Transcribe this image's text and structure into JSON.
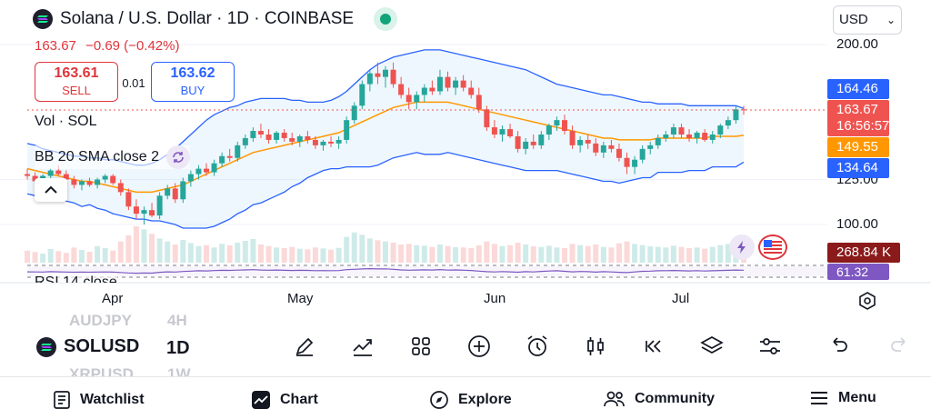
{
  "header": {
    "title": "Solana / U.S. Dollar · 1D · COINBASE",
    "price": "163.67",
    "change": "−0.69 (−0.42%)",
    "sell_price": "163.61",
    "sell_label": "SELL",
    "spread": "0.01",
    "buy_price": "163.62",
    "buy_label": "BUY",
    "currency": "USD"
  },
  "legend": {
    "volume": "Vol · SOL",
    "bb": "BB 20 SMA close 2",
    "rsi": "RSI 14 close"
  },
  "y_axis": {
    "labels": [
      "200.00",
      "125.00",
      "100.00"
    ]
  },
  "price_tags": {
    "upper_band": "164.46",
    "last_price": "163.67",
    "countdown": "16:56:57",
    "middle_band": "149.55",
    "lower_band": "134.64",
    "volume": "268.84 K",
    "rsi": "61.32"
  },
  "x_axis": {
    "labels": [
      "Apr",
      "May",
      "Jun",
      "Jul"
    ]
  },
  "bottom_toolbar": {
    "symbol": "SOLUSD",
    "interval": "1D",
    "ghost_symbol_above": "AUDJPY",
    "ghost_interval_above": "4H",
    "ghost_symbol_below": "XRPUSD",
    "ghost_interval_below": "1W"
  },
  "nav": {
    "watchlist": "Watchlist",
    "chart": "Chart",
    "explore": "Explore",
    "community": "Community",
    "menu": "Menu"
  },
  "colors": {
    "up": "#26a69a",
    "down": "#ef5350",
    "bb_basis": "#ff9800",
    "bb_band": "#2962ff",
    "rsi": "#7e57c2"
  },
  "chart_data": {
    "type": "candlestick",
    "title": "Solana / U.S. Dollar · 1D · COINBASE",
    "ylim": [
      90,
      210
    ],
    "x_ticks": [
      "Apr",
      "May",
      "Jun",
      "Jul"
    ],
    "ohlc": [
      [
        128,
        131,
        125,
        127
      ],
      [
        127,
        129,
        122,
        124
      ],
      [
        124,
        128,
        121,
        127
      ],
      [
        127,
        131,
        125,
        130
      ],
      [
        130,
        133,
        127,
        128
      ],
      [
        128,
        130,
        124,
        125
      ],
      [
        125,
        127,
        120,
        122
      ],
      [
        122,
        125,
        119,
        124
      ],
      [
        124,
        126,
        121,
        122
      ],
      [
        122,
        126,
        120,
        125
      ],
      [
        125,
        128,
        123,
        127
      ],
      [
        127,
        128,
        122,
        123
      ],
      [
        123,
        125,
        116,
        118
      ],
      [
        118,
        120,
        108,
        110
      ],
      [
        110,
        114,
        103,
        106
      ],
      [
        106,
        110,
        100,
        108
      ],
      [
        108,
        112,
        104,
        105
      ],
      [
        105,
        118,
        103,
        116
      ],
      [
        116,
        122,
        114,
        120
      ],
      [
        120,
        123,
        112,
        114
      ],
      [
        114,
        126,
        112,
        124
      ],
      [
        124,
        130,
        121,
        128
      ],
      [
        128,
        133,
        125,
        131
      ],
      [
        131,
        134,
        127,
        129
      ],
      [
        129,
        136,
        127,
        134
      ],
      [
        134,
        140,
        132,
        138
      ],
      [
        138,
        142,
        135,
        137
      ],
      [
        137,
        146,
        135,
        144
      ],
      [
        144,
        150,
        142,
        148
      ],
      [
        148,
        154,
        146,
        152
      ],
      [
        152,
        156,
        148,
        150
      ],
      [
        150,
        153,
        145,
        147
      ],
      [
        147,
        152,
        145,
        151
      ],
      [
        151,
        153,
        146,
        148
      ],
      [
        148,
        151,
        144,
        146
      ],
      [
        146,
        150,
        143,
        149
      ],
      [
        149,
        152,
        145,
        147
      ],
      [
        147,
        149,
        142,
        144
      ],
      [
        144,
        147,
        141,
        146
      ],
      [
        146,
        149,
        143,
        145
      ],
      [
        145,
        149,
        142,
        147
      ],
      [
        147,
        160,
        145,
        158
      ],
      [
        158,
        168,
        156,
        166
      ],
      [
        166,
        180,
        164,
        178
      ],
      [
        178,
        186,
        174,
        184
      ],
      [
        184,
        190,
        178,
        182
      ],
      [
        182,
        188,
        176,
        186
      ],
      [
        186,
        190,
        176,
        178
      ],
      [
        178,
        182,
        170,
        172
      ],
      [
        172,
        176,
        164,
        168
      ],
      [
        168,
        174,
        164,
        172
      ],
      [
        172,
        178,
        168,
        176
      ],
      [
        176,
        180,
        172,
        174
      ],
      [
        174,
        186,
        172,
        182
      ],
      [
        182,
        185,
        174,
        176
      ],
      [
        176,
        182,
        172,
        180
      ],
      [
        180,
        183,
        174,
        176
      ],
      [
        176,
        180,
        170,
        172
      ],
      [
        172,
        176,
        162,
        164
      ],
      [
        164,
        166,
        152,
        154
      ],
      [
        154,
        158,
        148,
        150
      ],
      [
        150,
        155,
        146,
        153
      ],
      [
        153,
        156,
        148,
        149
      ],
      [
        149,
        152,
        140,
        142
      ],
      [
        142,
        148,
        139,
        146
      ],
      [
        146,
        150,
        142,
        144
      ],
      [
        144,
        152,
        142,
        150
      ],
      [
        150,
        156,
        147,
        155
      ],
      [
        155,
        160,
        152,
        158
      ],
      [
        158,
        161,
        150,
        152
      ],
      [
        152,
        155,
        142,
        144
      ],
      [
        144,
        149,
        140,
        147
      ],
      [
        147,
        150,
        142,
        145
      ],
      [
        145,
        148,
        138,
        140
      ],
      [
        140,
        146,
        137,
        144
      ],
      [
        144,
        147,
        140,
        142
      ],
      [
        142,
        145,
        135,
        137
      ],
      [
        137,
        140,
        128,
        132
      ],
      [
        132,
        138,
        128,
        136
      ],
      [
        136,
        144,
        134,
        142
      ],
      [
        142,
        146,
        139,
        144
      ],
      [
        144,
        150,
        142,
        148
      ],
      [
        148,
        152,
        146,
        150
      ],
      [
        150,
        156,
        148,
        154
      ],
      [
        154,
        156,
        148,
        150
      ],
      [
        150,
        153,
        146,
        148
      ],
      [
        148,
        152,
        145,
        151
      ],
      [
        151,
        153,
        146,
        147
      ],
      [
        147,
        152,
        145,
        150
      ],
      [
        150,
        156,
        148,
        155
      ],
      [
        155,
        160,
        153,
        158
      ],
      [
        158,
        166,
        156,
        164
      ],
      [
        164,
        166,
        161,
        163.67
      ]
    ],
    "bb_upper": [
      145,
      144,
      142,
      141,
      140,
      139,
      138,
      138,
      137,
      137,
      136,
      136,
      135,
      134,
      133,
      133,
      134,
      136,
      139,
      142,
      146,
      150,
      154,
      158,
      161,
      163,
      165,
      166,
      168,
      169,
      170,
      170,
      170,
      170,
      169,
      169,
      168,
      168,
      168,
      169,
      171,
      174,
      178,
      182,
      186,
      189,
      191,
      193,
      194,
      195,
      196,
      197,
      197,
      197,
      196,
      195,
      194,
      193,
      192,
      191,
      190,
      189,
      188,
      187,
      186,
      184,
      182,
      180,
      178,
      177,
      176,
      175,
      174,
      173,
      172,
      172,
      171,
      170,
      169,
      168,
      168,
      167,
      167,
      167,
      167,
      166,
      166,
      166,
      166,
      166,
      166,
      166,
      164.46
    ],
    "bb_middle": [
      131,
      130,
      129,
      128,
      127,
      126,
      125,
      124,
      124,
      123,
      122,
      121,
      120,
      119,
      118,
      118,
      118,
      119,
      120,
      121,
      122,
      124,
      126,
      128,
      130,
      132,
      134,
      136,
      138,
      140,
      141,
      142,
      143,
      144,
      145,
      146,
      147,
      148,
      149,
      150,
      151,
      153,
      155,
      157,
      159,
      161,
      163,
      165,
      166,
      167,
      168,
      168,
      168,
      168,
      168,
      167,
      166,
      165,
      164,
      163,
      162,
      161,
      160,
      159,
      158,
      157,
      156,
      155,
      154,
      153,
      152,
      151,
      150,
      149,
      148,
      148,
      147,
      147,
      147,
      147,
      147,
      148,
      148,
      148,
      148,
      148,
      148,
      148,
      149,
      149,
      149,
      149,
      149.55
    ],
    "bb_lower": [
      117,
      116,
      116,
      115,
      114,
      113,
      112,
      110,
      111,
      109,
      108,
      106,
      105,
      104,
      103,
      103,
      102,
      102,
      101,
      100,
      98,
      98,
      98,
      98,
      99,
      101,
      103,
      106,
      108,
      111,
      112,
      114,
      116,
      118,
      121,
      123,
      126,
      128,
      130,
      131,
      131,
      132,
      132,
      132,
      132,
      133,
      135,
      137,
      138,
      139,
      140,
      139,
      139,
      139,
      140,
      139,
      138,
      137,
      136,
      135,
      134,
      133,
      132,
      131,
      130,
      130,
      130,
      130,
      130,
      129,
      128,
      127,
      126,
      125,
      124,
      124,
      123,
      124,
      125,
      126,
      126,
      129,
      129,
      129,
      129,
      130,
      130,
      130,
      132,
      132,
      132,
      132,
      134.64
    ],
    "volume": [
      40,
      35,
      30,
      45,
      38,
      32,
      50,
      42,
      36,
      55,
      48,
      40,
      70,
      90,
      120,
      110,
      95,
      80,
      70,
      60,
      75,
      65,
      55,
      58,
      50,
      62,
      57,
      66,
      72,
      78,
      60,
      55,
      50,
      48,
      52,
      46,
      44,
      50,
      47,
      43,
      49,
      85,
      100,
      92,
      80,
      74,
      70,
      66,
      60,
      62,
      58,
      56,
      52,
      60,
      55,
      51,
      50,
      48,
      57,
      70,
      62,
      55,
      58,
      66,
      60,
      54,
      52,
      56,
      50,
      48,
      62,
      58,
      55,
      60,
      52,
      50,
      64,
      70,
      62,
      58,
      54,
      52,
      50,
      56,
      52,
      48,
      50,
      46,
      52,
      58,
      62,
      66,
      70
    ],
    "rsi": [
      45,
      44,
      43,
      46,
      45,
      43,
      41,
      42,
      41,
      43,
      44,
      42,
      38,
      34,
      31,
      33,
      32,
      40,
      45,
      43,
      48,
      52,
      55,
      54,
      57,
      60,
      59,
      62,
      64,
      66,
      63,
      61,
      63,
      60,
      58,
      60,
      59,
      56,
      57,
      56,
      57,
      66,
      70,
      74,
      76,
      74,
      75,
      70,
      64,
      61,
      63,
      65,
      63,
      67,
      62,
      64,
      61,
      58,
      52,
      46,
      44,
      47,
      45,
      41,
      46,
      44,
      49,
      53,
      55,
      50,
      45,
      48,
      46,
      42,
      46,
      44,
      40,
      37,
      44,
      50,
      52,
      55,
      56,
      58,
      55,
      54,
      56,
      53,
      55,
      58,
      60,
      63,
      61.32
    ]
  }
}
